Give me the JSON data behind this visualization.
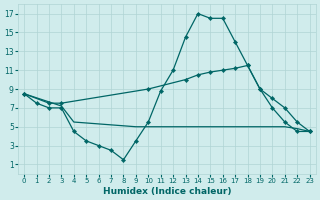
{
  "xlabel": "Humidex (Indice chaleur)",
  "line_color": "#006666",
  "bg_color": "#d0ecec",
  "grid_color": "#b0d4d4",
  "ylim": [
    0,
    18
  ],
  "xlim": [
    -0.5,
    23.5
  ],
  "yticks": [
    1,
    3,
    5,
    7,
    9,
    11,
    13,
    15,
    17
  ],
  "xticks": [
    0,
    1,
    2,
    3,
    4,
    5,
    6,
    7,
    8,
    9,
    10,
    11,
    12,
    13,
    14,
    15,
    16,
    17,
    18,
    19,
    20,
    21,
    22,
    23
  ],
  "line1_x": [
    0,
    1,
    2,
    3,
    4,
    5,
    6,
    7,
    8,
    9,
    10,
    11,
    12,
    13,
    14,
    15,
    16,
    17,
    18,
    19,
    20,
    21,
    22,
    23
  ],
  "line1_y": [
    8.5,
    7.5,
    7.0,
    7.0,
    4.5,
    3.5,
    3.0,
    2.5,
    1.5,
    3.5,
    5.5,
    8.8,
    11.0,
    14.5,
    17.0,
    16.5,
    16.5,
    14.0,
    11.5,
    9.0,
    7.0,
    5.5,
    4.5,
    4.5
  ],
  "line2_x": [
    0,
    2,
    3,
    10,
    13,
    14,
    15,
    16,
    17,
    18,
    19,
    20,
    21,
    22,
    23
  ],
  "line2_y": [
    8.5,
    7.5,
    7.5,
    9.0,
    10.0,
    10.5,
    10.8,
    11.0,
    11.2,
    11.5,
    9.0,
    8.0,
    7.0,
    5.5,
    4.5
  ],
  "line3_x": [
    0,
    3,
    4,
    9,
    10,
    11,
    12,
    13,
    14,
    15,
    16,
    17,
    18,
    19,
    20,
    21,
    22,
    23
  ],
  "line3_y": [
    8.5,
    7.2,
    5.5,
    5.0,
    5.0,
    5.0,
    5.0,
    5.0,
    5.0,
    5.0,
    5.0,
    5.0,
    5.0,
    5.0,
    5.0,
    5.0,
    4.8,
    4.5
  ]
}
